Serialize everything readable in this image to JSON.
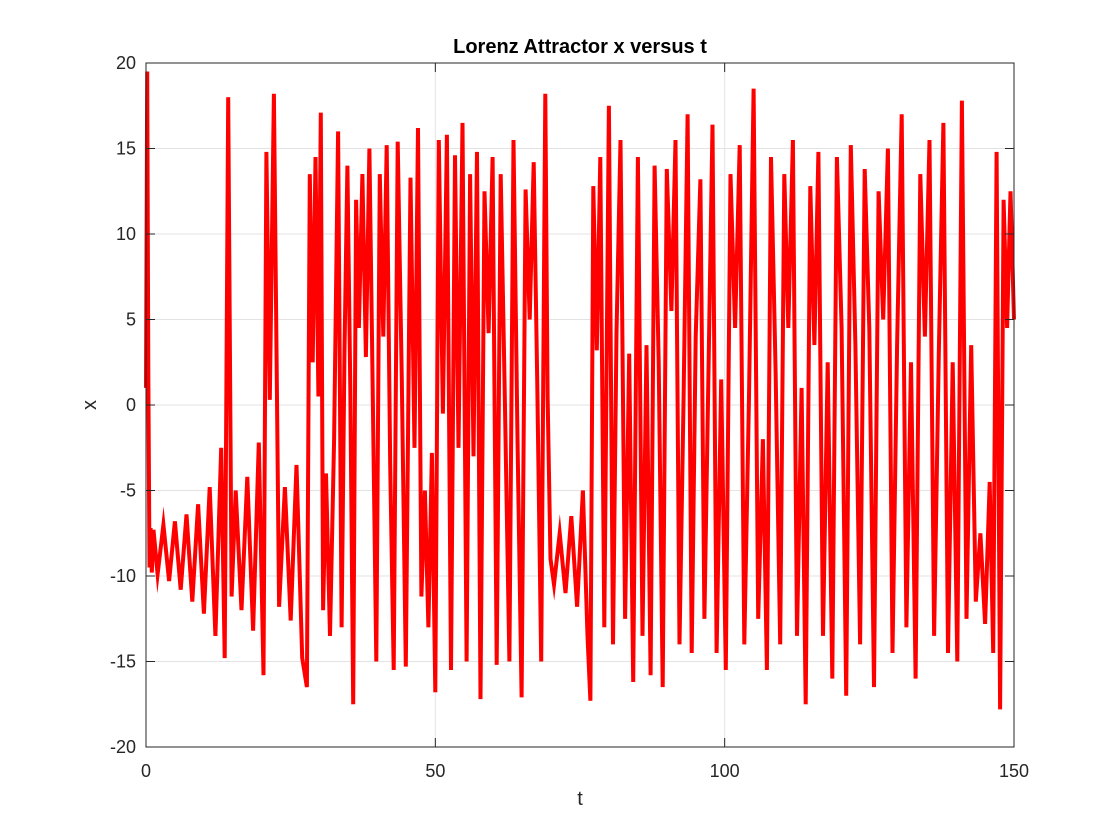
{
  "chart_data": {
    "type": "line",
    "title": "Lorenz Attractor x versus t",
    "xlabel": "t",
    "ylabel": "x",
    "xlim": [
      0,
      150
    ],
    "ylim": [
      -20,
      20
    ],
    "grid": true,
    "xticks": [
      0,
      50,
      100,
      150
    ],
    "yticks": [
      -20,
      -15,
      -10,
      -5,
      0,
      5,
      10,
      15,
      20
    ],
    "xtick_labels": [
      "0",
      "50",
      "100",
      "150"
    ],
    "ytick_labels": [
      "-20",
      "-15",
      "-10",
      "-5",
      "0",
      "5",
      "10",
      "15",
      "20"
    ],
    "series": [
      {
        "color": "#ff0000",
        "x": [
          0,
          0.2,
          0.4,
          0.6,
          0.8,
          1.0,
          1.3,
          2,
          3,
          4,
          5,
          6,
          7,
          8,
          9,
          10,
          11,
          12,
          13,
          13.6,
          14.2,
          14.8,
          15.5,
          16.5,
          17.5,
          18.5,
          19.5,
          20.3,
          20.8,
          21.4,
          22.1,
          23,
          24,
          25,
          26,
          27,
          27.8,
          28.3,
          28.8,
          29.3,
          29.8,
          30.2,
          30.6,
          31.1,
          31.8,
          32.5,
          33.2,
          33.8,
          34.3,
          34.8,
          35.3,
          35.8,
          36.3,
          36.8,
          37.4,
          38,
          38.6,
          39.2,
          39.8,
          40.4,
          41,
          41.6,
          42.2,
          42.8,
          43.5,
          44.2,
          44.9,
          45.7,
          46.4,
          47,
          47.6,
          48.2,
          48.8,
          49.4,
          50,
          50.6,
          51.3,
          52,
          52.7,
          53.4,
          54,
          54.7,
          55.4,
          56,
          56.6,
          57.2,
          57.8,
          58.5,
          59.2,
          59.9,
          60.6,
          61.3,
          62,
          62.8,
          63.5,
          64.2,
          64.9,
          65.6,
          66.3,
          67,
          67.6,
          68.3,
          69,
          69.4,
          69.9,
          70.5,
          71.5,
          72.5,
          73.5,
          74.5,
          75.5,
          76.3,
          76.8,
          77.3,
          77.9,
          78.5,
          79.2,
          80,
          80.7,
          81.3,
          82,
          82.8,
          83.5,
          84.2,
          85,
          85.8,
          86.5,
          87.2,
          87.9,
          88.6,
          89.3,
          90,
          90.8,
          91.5,
          92.2,
          92.9,
          93.6,
          94.3,
          95,
          95.8,
          96.5,
          97.2,
          97.9,
          98.6,
          99.4,
          100.2,
          101,
          101.8,
          102.6,
          103.4,
          104.2,
          105,
          105.8,
          106.6,
          107.3,
          108,
          108.8,
          109.6,
          110.3,
          111,
          111.8,
          112.5,
          113.3,
          114,
          114.8,
          115.5,
          116.2,
          117,
          117.8,
          118.6,
          119.4,
          120.2,
          121,
          121.8,
          122.6,
          123.4,
          124.2,
          125,
          125.8,
          126.6,
          127.4,
          128.2,
          129,
          129.8,
          130.6,
          131.4,
          132.2,
          133,
          133.8,
          134.6,
          135.4,
          136.2,
          137,
          137.8,
          138.6,
          139.4,
          140.2,
          141,
          141.8,
          142.6,
          143.4,
          144.2,
          145,
          145.8,
          146.4,
          147,
          147.6,
          148.2,
          148.8,
          149.4,
          150
        ],
        "y": [
          1,
          19.5,
          2,
          -9.5,
          -7.2,
          -9.8,
          -7.3,
          -9.9,
          -7.0,
          -10.3,
          -6.8,
          -10.8,
          -6.4,
          -11.5,
          -5.8,
          -12.2,
          -4.8,
          -13.5,
          -2.5,
          -14.8,
          18,
          -11.2,
          -5.0,
          -12.0,
          -4.2,
          -13.2,
          -2.2,
          -15.8,
          14.8,
          0.3,
          18.2,
          -11.8,
          -4.8,
          -12.6,
          -3.5,
          -14.8,
          -16.5,
          13.5,
          2.5,
          14.5,
          0.5,
          17.1,
          -12.0,
          -4.0,
          -13.5,
          -2.0,
          16.0,
          -13.0,
          3.2,
          14.0,
          1.0,
          -17.5,
          12.0,
          4.5,
          13.5,
          2.8,
          15.0,
          0.5,
          -15.0,
          13.5,
          4.0,
          15.2,
          -3.5,
          -15.5,
          15.4,
          1.5,
          -15.3,
          13.3,
          -2.5,
          16.2,
          -11.2,
          -5.0,
          -13.0,
          -2.8,
          -16.8,
          15.5,
          -0.5,
          15.8,
          -15.5,
          14.6,
          -2.5,
          16.5,
          -15.0,
          13.5,
          -3.0,
          14.8,
          -17.2,
          12.5,
          4.2,
          14.5,
          -15.2,
          13.5,
          0.5,
          -15.0,
          15.5,
          -2.0,
          -17.1,
          12.6,
          5.0,
          14.2,
          1.5,
          -15.0,
          18.2,
          0.5,
          -9.0,
          -10.5,
          -7.5,
          -11.0,
          -6.5,
          -11.8,
          -5.0,
          -13.5,
          -17.3,
          12.8,
          3.2,
          14.5,
          -13.0,
          17.5,
          -14.0,
          4.2,
          15.5,
          -12.5,
          3.0,
          -16.2,
          14.5,
          -13.5,
          3.5,
          -15.8,
          14.0,
          2.5,
          -16.5,
          13.8,
          5.5,
          15.5,
          -14.0,
          0.5,
          17.0,
          -14.5,
          4.0,
          13.2,
          -12.5,
          2.0,
          16.4,
          -14.5,
          1.5,
          -15.5,
          13.5,
          4.5,
          15.2,
          -14.0,
          0.5,
          18.5,
          -12.5,
          -2.0,
          -15.5,
          14.5,
          2.0,
          -14.0,
          13.5,
          4.5,
          15.5,
          -13.5,
          1.0,
          -17.5,
          12.8,
          3.5,
          14.8,
          -13.5,
          2.5,
          -16.0,
          14.5,
          4.5,
          -17.0,
          15.2,
          3.5,
          -14.0,
          13.8,
          4.5,
          -16.5,
          12.5,
          5.0,
          15.0,
          -14.5,
          3.5,
          17.0,
          -13.0,
          2.5,
          -16.0,
          13.5,
          4.0,
          15.5,
          -13.5,
          3.0,
          16.5,
          -14.5,
          2.5,
          -15.0,
          17.8,
          -12.5,
          3.5,
          -11.5,
          -7.5,
          -12.8,
          -4.5,
          -14.5,
          14.8,
          -17.8,
          12.0,
          4.5,
          12.5,
          5.0
        ]
      }
    ]
  }
}
